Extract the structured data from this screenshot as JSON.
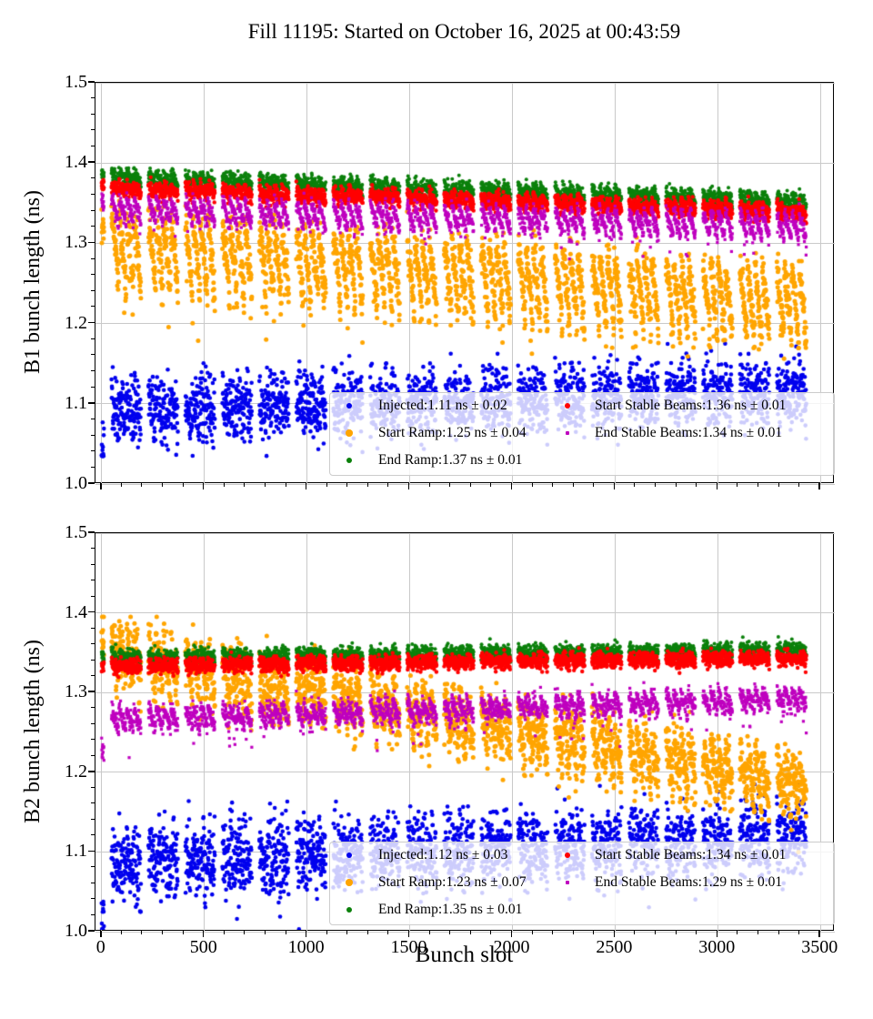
{
  "title": "Fill 11195: Started on October 16, 2025 at 00:43:59",
  "xlabel": "Bunch slot",
  "fill_pattern": {
    "lead_bunches": 12,
    "train_count": 19,
    "first_train_slot": 48,
    "train_period": 180,
    "train_length": 144,
    "subtrain_length": 36,
    "last_slot": 3432
  },
  "chart_data": [
    {
      "type": "scatter",
      "beam": "B1",
      "ylabel": "B1 bunch length (ns)",
      "xlim": [
        -30,
        3570
      ],
      "ylim": [
        1.0,
        1.5
      ],
      "xticks": [
        0,
        500,
        1000,
        1500,
        2000,
        2500,
        3000,
        3500
      ],
      "xtick_labels": [
        "0",
        "500",
        "1000",
        "1500",
        "2000",
        "2500",
        "3000",
        "3500"
      ],
      "yticks": [
        1.0,
        1.1,
        1.2,
        1.3,
        1.4,
        1.5
      ],
      "ytick_labels": [
        "1.0",
        "1.1",
        "1.2",
        "1.3",
        "1.4",
        "1.5"
      ],
      "grid": true,
      "show_xtick_labels": false,
      "legend": {
        "columns": 2,
        "location": "lower right"
      },
      "series": [
        {
          "name": "Injected",
          "label": "Injected:1.11 ns ± 0.02",
          "value_ns": 1.11,
          "error_ns": 0.02,
          "color": "#0000ee",
          "marker": "circle",
          "size": 2.3,
          "profile": {
            "y_start": 1.1,
            "y_end": 1.125,
            "droop": 0.02,
            "droop_power": 1,
            "noise": 0.02,
            "lead_shift": -0.045,
            "clamp": [
              1.035,
              1.175
            ]
          }
        },
        {
          "name": "Start Ramp",
          "label": "Start Ramp:1.25 ns ± 0.04",
          "value_ns": 1.25,
          "error_ns": 0.04,
          "color": "#ffa500",
          "marker": "circle",
          "size": 2.5,
          "profile": {
            "y_start": 1.33,
            "y_end": 1.258,
            "droop": 0.085,
            "droop_power": 1.4,
            "noise": 0.013,
            "outlier_prob": 0.025,
            "outlier_depth": 0.07,
            "clamp": [
              1.13,
              1.37
            ]
          }
        },
        {
          "name": "End Ramp",
          "label": "End Ramp:1.37 ns ± 0.01",
          "value_ns": 1.37,
          "error_ns": 0.01,
          "color": "#0b800b",
          "marker": "circle",
          "size": 2.0,
          "profile": {
            "y_start": 1.389,
            "y_end": 1.358,
            "droop": 0.012,
            "droop_power": 1,
            "noise": 0.0045
          }
        },
        {
          "name": "Start Stable Beams",
          "label": "Start Stable Beams:1.36 ns ± 0.01",
          "value_ns": 1.36,
          "error_ns": 0.01,
          "color": "#ff0000",
          "marker": "circle",
          "size": 2.2,
          "profile": {
            "y_start": 1.374,
            "y_end": 1.344,
            "droop": 0.01,
            "droop_power": 1,
            "noise": 0.0045
          }
        },
        {
          "name": "End Stable Beams",
          "label": "End Stable Beams:1.34 ns ± 0.01",
          "value_ns": 1.34,
          "error_ns": 0.01,
          "color": "#bf00bf",
          "marker": "square",
          "size": 1.6,
          "profile": {
            "y_start": 1.355,
            "y_end": 1.334,
            "droop": 0.028,
            "droop_power": 1.1,
            "noise": 0.005,
            "outlier_prob": 0.04,
            "outlier_depth": 0.03
          }
        }
      ]
    },
    {
      "type": "scatter",
      "beam": "B2",
      "ylabel": "B2 bunch length (ns)",
      "xlim": [
        -30,
        3570
      ],
      "ylim": [
        1.0,
        1.5
      ],
      "xticks": [
        0,
        500,
        1000,
        1500,
        2000,
        2500,
        3000,
        3500
      ],
      "xtick_labels": [
        "0",
        "500",
        "1000",
        "1500",
        "2000",
        "2500",
        "3000",
        "3500"
      ],
      "yticks": [
        1.0,
        1.1,
        1.2,
        1.3,
        1.4,
        1.5
      ],
      "ytick_labels": [
        "1.0",
        "1.1",
        "1.2",
        "1.3",
        "1.4",
        "1.5"
      ],
      "grid": true,
      "show_xtick_labels": true,
      "legend": {
        "columns": 2,
        "location": "lower right"
      },
      "series": [
        {
          "name": "Injected",
          "label": "Injected:1.12 ns ± 0.03",
          "value_ns": 1.12,
          "error_ns": 0.03,
          "color": "#0000ee",
          "marker": "circle",
          "size": 2.3,
          "profile": {
            "y_start": 1.095,
            "y_end": 1.128,
            "droop": 0.02,
            "droop_power": 1,
            "noise": 0.023,
            "lead_shift": -0.075,
            "clamp": [
              1.003,
              1.185
            ]
          }
        },
        {
          "name": "Start Ramp",
          "label": "Start Ramp:1.23 ns ± 0.07",
          "value_ns": 1.23,
          "error_ns": 0.07,
          "color": "#ffa500",
          "marker": "circle",
          "size": 2.5,
          "profile": {
            "y_start": 1.372,
            "y_end": 1.205,
            "droop": 0.052,
            "droop_power": 1.3,
            "noise": 0.017,
            "outlier_prob": 0.02,
            "outlier_depth": 0.05,
            "clamp": [
              1.1,
              1.395
            ]
          }
        },
        {
          "name": "End Ramp",
          "label": "End Ramp:1.35 ns ± 0.01",
          "value_ns": 1.35,
          "error_ns": 0.01,
          "color": "#0b800b",
          "marker": "circle",
          "size": 2.0,
          "profile": {
            "y_start": 1.347,
            "y_end": 1.357,
            "droop": 0.006,
            "droop_power": 1,
            "noise": 0.0045
          }
        },
        {
          "name": "Start Stable Beams",
          "label": "Start Stable Beams:1.34 ns ± 0.01",
          "value_ns": 1.34,
          "error_ns": 0.01,
          "color": "#ff0000",
          "marker": "circle",
          "size": 2.2,
          "profile": {
            "y_start": 1.336,
            "y_end": 1.346,
            "droop": 0.006,
            "droop_power": 1,
            "noise": 0.0045
          }
        },
        {
          "name": "End Stable Beams",
          "label": "End Stable Beams:1.29 ns ± 0.01",
          "value_ns": 1.29,
          "error_ns": 0.01,
          "color": "#bf00bf",
          "marker": "square",
          "size": 1.6,
          "profile": {
            "y_start": 1.276,
            "y_end": 1.303,
            "droop": 0.022,
            "droop_power": 1,
            "noise": 0.006,
            "outlier_prob": 0.03,
            "outlier_depth": 0.04,
            "lead_shift": -0.045
          }
        }
      ]
    }
  ]
}
